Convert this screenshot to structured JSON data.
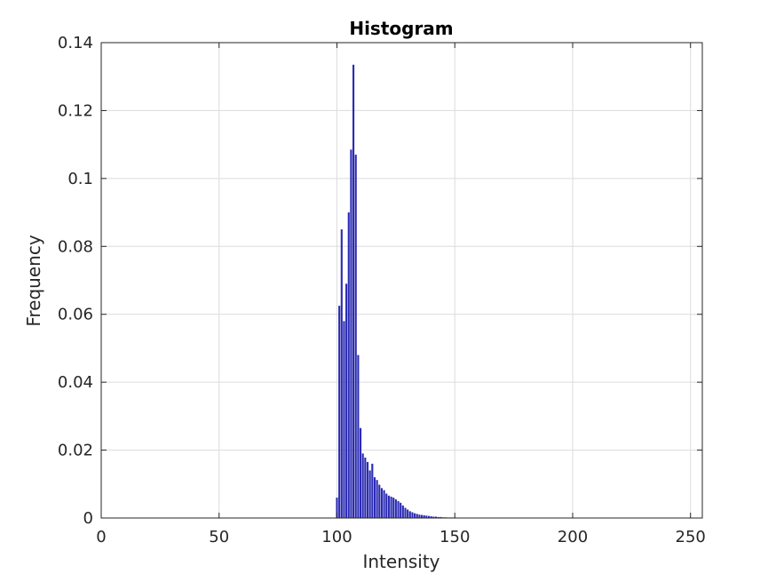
{
  "chart_data": {
    "type": "bar",
    "title": "Histogram",
    "xlabel": "Intensity",
    "ylabel": "Frequency",
    "xlim": [
      0,
      255
    ],
    "ylim": [
      0,
      0.14
    ],
    "xticks": [
      0,
      50,
      100,
      150,
      200,
      250
    ],
    "xtick_labels": [
      "0",
      "50",
      "100",
      "150",
      "200",
      "250"
    ],
    "yticks": [
      0,
      0.02,
      0.04,
      0.06,
      0.08,
      0.1,
      0.12,
      0.14
    ],
    "ytick_labels": [
      "0",
      "0.02",
      "0.04",
      "0.06",
      "0.08",
      "0.1",
      "0.12",
      "0.14"
    ],
    "grid": true,
    "bar_color": "#2b2bb3",
    "x": [
      100,
      101,
      102,
      103,
      104,
      105,
      106,
      107,
      108,
      109,
      110,
      111,
      112,
      113,
      114,
      115,
      116,
      117,
      118,
      119,
      120,
      121,
      122,
      123,
      124,
      125,
      126,
      127,
      128,
      129,
      130,
      131,
      132,
      133,
      134,
      135,
      136,
      137,
      138,
      139,
      140,
      141,
      142,
      143,
      144,
      145,
      146,
      147,
      148,
      149,
      150
    ],
    "values": [
      0.006,
      0.0625,
      0.085,
      0.058,
      0.069,
      0.09,
      0.1085,
      0.1335,
      0.107,
      0.048,
      0.0265,
      0.019,
      0.0178,
      0.0165,
      0.014,
      0.016,
      0.012,
      0.0112,
      0.0098,
      0.0088,
      0.0082,
      0.0072,
      0.0066,
      0.0063,
      0.006,
      0.0055,
      0.005,
      0.0045,
      0.0037,
      0.003,
      0.0025,
      0.002,
      0.0017,
      0.0014,
      0.0012,
      0.001,
      0.0009,
      0.0008,
      0.0007,
      0.0006,
      0.0005,
      0.0004,
      0.0004,
      0.0003,
      0.0003,
      0.0002,
      0.0002,
      0.0001,
      0.0001,
      0.0001,
      0.0001
    ]
  }
}
